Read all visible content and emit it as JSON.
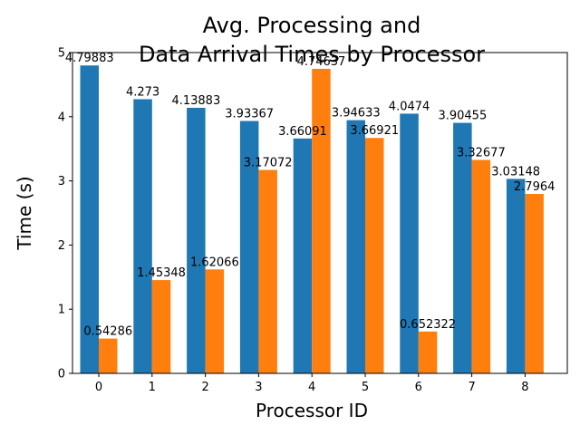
{
  "chart_data": {
    "type": "bar",
    "title": [
      "Avg. Processing and",
      "Data Arrival Times by Processor"
    ],
    "xlabel": "Processor ID",
    "ylabel": "Time (s)",
    "categories": [
      "0",
      "1",
      "2",
      "3",
      "4",
      "5",
      "6",
      "7",
      "8"
    ],
    "ylim": [
      0,
      5
    ],
    "yticks": [
      "0",
      "1",
      "2",
      "3",
      "4",
      "5"
    ],
    "grid": false,
    "series": [
      {
        "color": "#1f77b4",
        "values": [
          4.79883,
          4.273,
          4.13883,
          3.93367,
          3.66091,
          3.94633,
          4.0474,
          3.90455,
          3.03148
        ],
        "labels": [
          "4.79883",
          "4.273",
          "4.13883",
          "3.93367",
          "3.66091",
          "3.94633",
          "4.0474",
          "3.90455",
          "3.03148"
        ]
      },
      {
        "color": "#ff7f0e",
        "values": [
          0.54286,
          1.45348,
          1.62066,
          3.17072,
          4.74637,
          3.66921,
          0.652322,
          3.32677,
          2.7964
        ],
        "labels": [
          "0.54286",
          "1.45348",
          "1.62066",
          "3.17072",
          "4.74637",
          "3.66921",
          "0.652322",
          "3.32677",
          "2.7964"
        ]
      }
    ]
  }
}
